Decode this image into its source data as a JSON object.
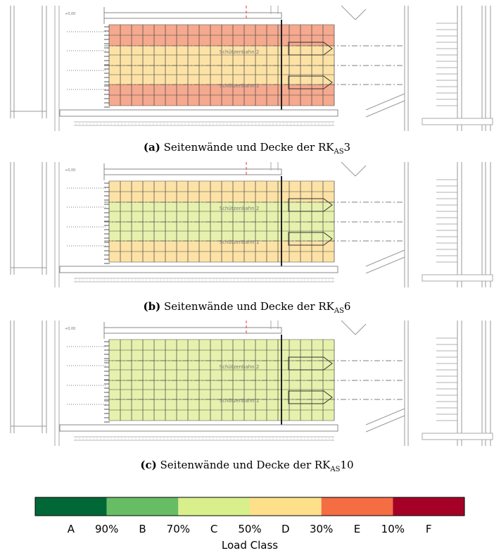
{
  "panels": [
    {
      "label": "(a)",
      "caption": "Seitenwände und Decke der RK",
      "subscript": "AS",
      "number": "3",
      "level": "+0,00",
      "lane_top": "Schützenbahn 2",
      "lane_bottom": "Schützenbahn 1",
      "bands": [
        "#f5a98e",
        "#fde2a6",
        "#f5a98e"
      ]
    },
    {
      "label": "(b)",
      "caption": "Seitenwände und Decke der RK",
      "subscript": "AS",
      "number": "6",
      "level": "+0,00",
      "lane_top": "Schützenbahn 2",
      "lane_bottom": "Schützenbahn 1",
      "bands": [
        "#fde2a6",
        "#e6f1ad",
        "#fde2a6"
      ]
    },
    {
      "label": "(c)",
      "caption": "Seitenwände und Decke der RK",
      "subscript": "AS",
      "number": "10",
      "level": "+0,00",
      "lane_top": "Schützenbahn 2",
      "lane_bottom": "Schützenbahn 1",
      "bands": [
        "#e6f1ad",
        "#e6f1ad",
        "#e6f1ad"
      ]
    }
  ],
  "legend": {
    "title": "Load Class",
    "classes": [
      "A",
      "B",
      "C",
      "D",
      "E",
      "F"
    ],
    "colors": [
      "#006837",
      "#66bd63",
      "#d9ef8b",
      "#fee08b",
      "#f46d43",
      "#a50026"
    ],
    "thresholds": [
      "90%",
      "70%",
      "50%",
      "30%",
      "10%"
    ]
  }
}
